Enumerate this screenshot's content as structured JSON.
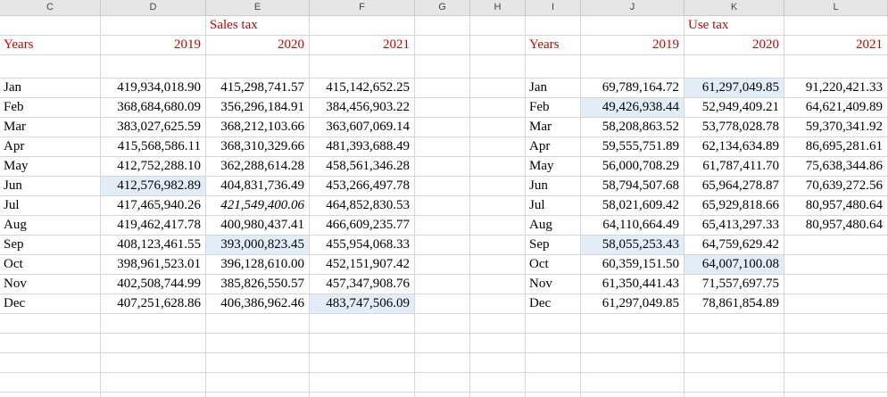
{
  "colors": {
    "red": "#cc0000",
    "highlight": "#e3edf8",
    "grid": "#d6d6d6",
    "header_bg": "#e6e6e6",
    "header_border": "#c9c9c9",
    "header_text": "#454545"
  },
  "column_headers": [
    "C",
    "D",
    "E",
    "F",
    "G",
    "H",
    "I",
    "J",
    "K",
    "L"
  ],
  "tables": [
    {
      "id": "sales-tax",
      "title": "Sales tax",
      "years_label": "Years",
      "years": [
        "2019",
        "2020",
        "2021"
      ],
      "rows": [
        {
          "month": "Jan",
          "values": [
            {
              "t": "419,934,018.90"
            },
            {
              "t": "415,298,741.57"
            },
            {
              "t": "415,142,652.25"
            }
          ]
        },
        {
          "month": "Feb",
          "values": [
            {
              "t": "368,684,680.09"
            },
            {
              "t": "356,296,184.91"
            },
            {
              "t": "384,456,903.22"
            }
          ]
        },
        {
          "month": "Mar",
          "values": [
            {
              "t": "383,027,625.59"
            },
            {
              "t": "368,212,103.66"
            },
            {
              "t": "363,607,069.14"
            }
          ]
        },
        {
          "month": "Apr",
          "values": [
            {
              "t": "415,568,586.11"
            },
            {
              "t": "368,310,329.66"
            },
            {
              "t": "481,393,688.49"
            }
          ]
        },
        {
          "month": "May",
          "values": [
            {
              "t": "412,752,288.10"
            },
            {
              "t": "362,288,614.28"
            },
            {
              "t": "458,561,346.28"
            }
          ]
        },
        {
          "month": "Jun",
          "values": [
            {
              "t": "412,576,982.89",
              "hl": true
            },
            {
              "t": "404,831,736.49"
            },
            {
              "t": "453,266,497.78"
            }
          ]
        },
        {
          "month": "Jul",
          "values": [
            {
              "t": "417,465,940.26"
            },
            {
              "t": "421,549,400.06",
              "italic": true
            },
            {
              "t": "464,852,830.53"
            }
          ]
        },
        {
          "month": "Aug",
          "values": [
            {
              "t": "419,462,417.78"
            },
            {
              "t": "400,980,437.41"
            },
            {
              "t": "466,609,235.77"
            }
          ]
        },
        {
          "month": "Sep",
          "values": [
            {
              "t": "408,123,461.55"
            },
            {
              "t": "393,000,823.45",
              "hl": true
            },
            {
              "t": "455,954,068.33"
            }
          ]
        },
        {
          "month": "Oct",
          "values": [
            {
              "t": "398,961,523.01"
            },
            {
              "t": "396,128,610.00"
            },
            {
              "t": "452,151,907.42"
            }
          ]
        },
        {
          "month": "Nov",
          "values": [
            {
              "t": "402,508,744.99"
            },
            {
              "t": "385,826,550.57"
            },
            {
              "t": "457,347,908.76"
            }
          ]
        },
        {
          "month": "Dec",
          "values": [
            {
              "t": "407,251,628.86"
            },
            {
              "t": "406,386,962.46"
            },
            {
              "t": "483,747,506.09",
              "hl": true
            }
          ]
        }
      ]
    },
    {
      "id": "use-tax",
      "title": "Use tax",
      "years_label": "Years",
      "years": [
        "2019",
        "2020",
        "2021"
      ],
      "rows": [
        {
          "month": "Jan",
          "values": [
            {
              "t": "69,789,164.72"
            },
            {
              "t": "61,297,049.85",
              "hl": true
            },
            {
              "t": "91,220,421.33"
            }
          ]
        },
        {
          "month": "Feb",
          "values": [
            {
              "t": "49,426,938.44",
              "hl": true
            },
            {
              "t": "52,949,409.21"
            },
            {
              "t": "64,621,409.89"
            }
          ]
        },
        {
          "month": "Mar",
          "values": [
            {
              "t": "58,208,863.52"
            },
            {
              "t": "53,778,028.78"
            },
            {
              "t": "59,370,341.92"
            }
          ]
        },
        {
          "month": "Apr",
          "values": [
            {
              "t": "59,555,751.89"
            },
            {
              "t": "62,134,634.89"
            },
            {
              "t": "86,695,281.61"
            }
          ]
        },
        {
          "month": "May",
          "values": [
            {
              "t": "56,000,708.29"
            },
            {
              "t": "61,787,411.70"
            },
            {
              "t": "75,638,344.86"
            }
          ]
        },
        {
          "month": "Jun",
          "values": [
            {
              "t": "58,794,507.68"
            },
            {
              "t": "65,964,278.87"
            },
            {
              "t": "70,639,272.56"
            }
          ]
        },
        {
          "month": "Jul",
          "values": [
            {
              "t": "58,021,609.42"
            },
            {
              "t": "65,929,818.66"
            },
            {
              "t": "80,957,480.64"
            }
          ]
        },
        {
          "month": "Aug",
          "values": [
            {
              "t": "64,110,664.49"
            },
            {
              "t": "65,413,297.33"
            },
            {
              "t": "80,957,480.64"
            }
          ]
        },
        {
          "month": "Sep",
          "values": [
            {
              "t": "58,055,253.43",
              "hl": true
            },
            {
              "t": "64,759,629.42"
            },
            {
              "t": ""
            }
          ]
        },
        {
          "month": "Oct",
          "values": [
            {
              "t": "60,359,151.50"
            },
            {
              "t": "64,007,100.08",
              "hl": true
            },
            {
              "t": ""
            }
          ]
        },
        {
          "month": "Nov",
          "values": [
            {
              "t": "61,350,441.43"
            },
            {
              "t": "71,557,697.75"
            },
            {
              "t": ""
            }
          ]
        },
        {
          "month": "Dec",
          "values": [
            {
              "t": "61,297,049.85"
            },
            {
              "t": "78,861,854.89"
            },
            {
              "t": ""
            }
          ]
        }
      ]
    }
  ]
}
